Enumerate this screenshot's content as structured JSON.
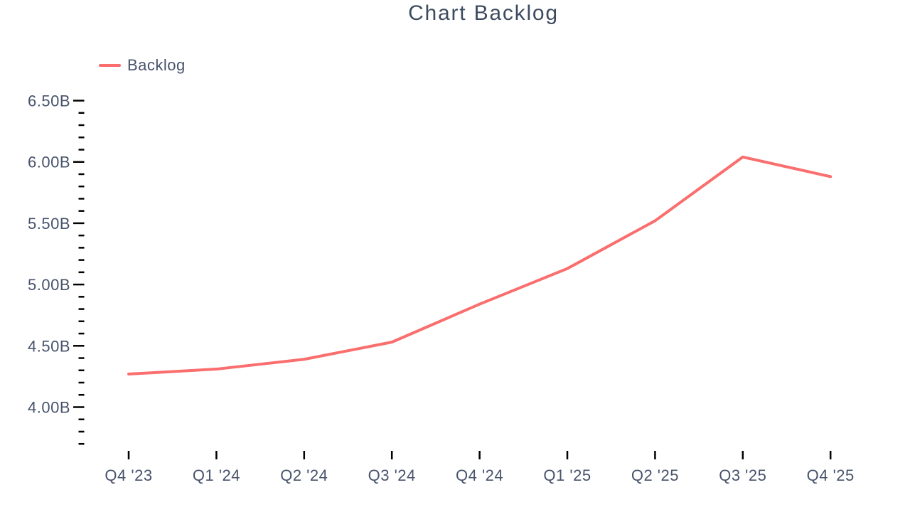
{
  "chart_data": {
    "type": "line",
    "title": "Chart Backlog",
    "categories": [
      "Q4 '23",
      "Q1 '24",
      "Q2 '24",
      "Q3 '24",
      "Q4 '24",
      "Q1 '25",
      "Q2 '25",
      "Q3 '25",
      "Q4 '25"
    ],
    "series": [
      {
        "name": "Backlog",
        "color": "#fa6e6e",
        "values": [
          4.27,
          4.31,
          4.39,
          4.53,
          4.84,
          5.13,
          5.52,
          6.04,
          5.88
        ]
      }
    ],
    "unit": "B",
    "xlabel": "",
    "ylabel": "",
    "ylim": [
      3.7,
      6.5
    ],
    "y_axis": {
      "major_step": 0.5,
      "minor_step": 0.1,
      "major_tick_labels": [
        "6.50B",
        "6.00B",
        "5.50B",
        "5.00B",
        "4.50B",
        "4.00B"
      ]
    },
    "grid": false,
    "legend_position": "top-left"
  },
  "style": {
    "title_color": "#3d4b60",
    "label_color": "#47536b",
    "tick_color": "#000000",
    "background": "#ffffff"
  }
}
